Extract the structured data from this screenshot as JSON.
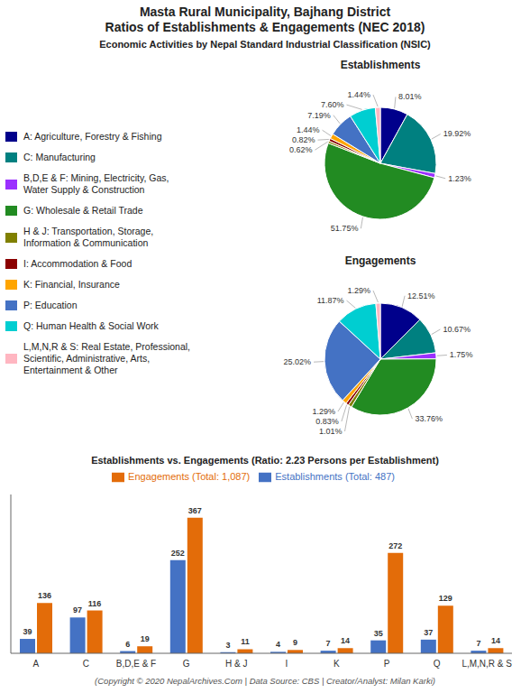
{
  "title": "Masta Rural Municipality, Bajhang District\nRatios of Establishments & Engagements (NEC 2018)",
  "subtitle": "Economic Activities by Nepal Standard Industrial Classification (NSIC)",
  "annotations": [
    "(Copyright © 2020 NepalArchives.Com | Data Source: CBS | Creator/Analyst: Milan Karki)"
  ],
  "chart_data": [
    {
      "type": "pie",
      "title": "Establishments",
      "categories": [
        "A: Agriculture, Forestry & Fishing",
        "C: Manufacturing",
        "B,D,E & F: Mining, Electricity, Gas,\nWater Supply & Construction",
        "G: Wholesale & Retail Trade",
        "H & J: Transportation, Storage,\nInformation & Communication",
        "I: Accommodation & Food",
        "K: Financial, Insurance",
        "P: Education",
        "Q: Human Health & Social Work",
        "L,M,N,R & S: Real Estate, Professional,\nScientific, Administrative, Arts,\nEntertainment & Other"
      ],
      "values": [
        8.01,
        19.92,
        1.23,
        51.75,
        0.62,
        0.82,
        1.44,
        7.19,
        7.6,
        1.44
      ],
      "value_labels": [
        "8.01%",
        "19.92%",
        "1.23%",
        "51.75%",
        "0.62%",
        "0.82%",
        "1.44%",
        "7.19%",
        "7.60%",
        "1.44%"
      ],
      "colors": [
        "#00008B",
        "#008080",
        "#9B30FF",
        "#228B22",
        "#808000",
        "#8B0000",
        "#FFA500",
        "#4472C4",
        "#00CED1",
        "#FFB6C1"
      ],
      "data_labels": true,
      "legend": "left"
    },
    {
      "type": "pie",
      "title": "Engagements",
      "categories": [
        "A: Agriculture, Forestry & Fishing",
        "C: Manufacturing",
        "B,D,E & F: Mining, Electricity, Gas,\nWater Supply & Construction",
        "G: Wholesale & Retail Trade",
        "H & J: Transportation, Storage,\nInformation & Communication",
        "I: Accommodation & Food",
        "K: Financial, Insurance",
        "P: Education",
        "Q: Human Health & Social Work",
        "L,M,N,R & S: Real Estate, Professional,\nScientific, Administrative, Arts,\nEntertainment & Other"
      ],
      "values": [
        12.51,
        10.67,
        1.75,
        33.76,
        1.01,
        0.83,
        1.29,
        25.02,
        11.87,
        1.29
      ],
      "value_labels": [
        "12.51%",
        "10.67%",
        "1.75%",
        "33.76%",
        "1.01%",
        "0.83%",
        "1.29%",
        "25.02%",
        "11.87%",
        "1.29%"
      ],
      "colors": [
        "#00008B",
        "#008080",
        "#9B30FF",
        "#228B22",
        "#808000",
        "#8B0000",
        "#FFA500",
        "#4472C4",
        "#00CED1",
        "#FFB6C1"
      ],
      "data_labels": true
    },
    {
      "type": "bar",
      "title": "Establishments vs. Engagements (Ratio: 2.23 Persons per Establishment)",
      "categories": [
        "A",
        "C",
        "B,D,E & F",
        "G",
        "H & J",
        "I",
        "K",
        "P",
        "Q",
        "L,M,N,R & S"
      ],
      "series": [
        {
          "name": "Establishments (Total: 487)",
          "color": "#4472C4",
          "values": [
            39,
            97,
            6,
            252,
            3,
            4,
            7,
            35,
            37,
            7
          ]
        },
        {
          "name": "Engagements (Total: 1,087)",
          "color": "#E36C09",
          "values": [
            136,
            116,
            19,
            367,
            11,
            9,
            14,
            272,
            129,
            14
          ]
        }
      ],
      "ylim": [
        0,
        430
      ],
      "data_labels": true,
      "legend": "top",
      "tick_labels": "x",
      "grid": false
    }
  ]
}
